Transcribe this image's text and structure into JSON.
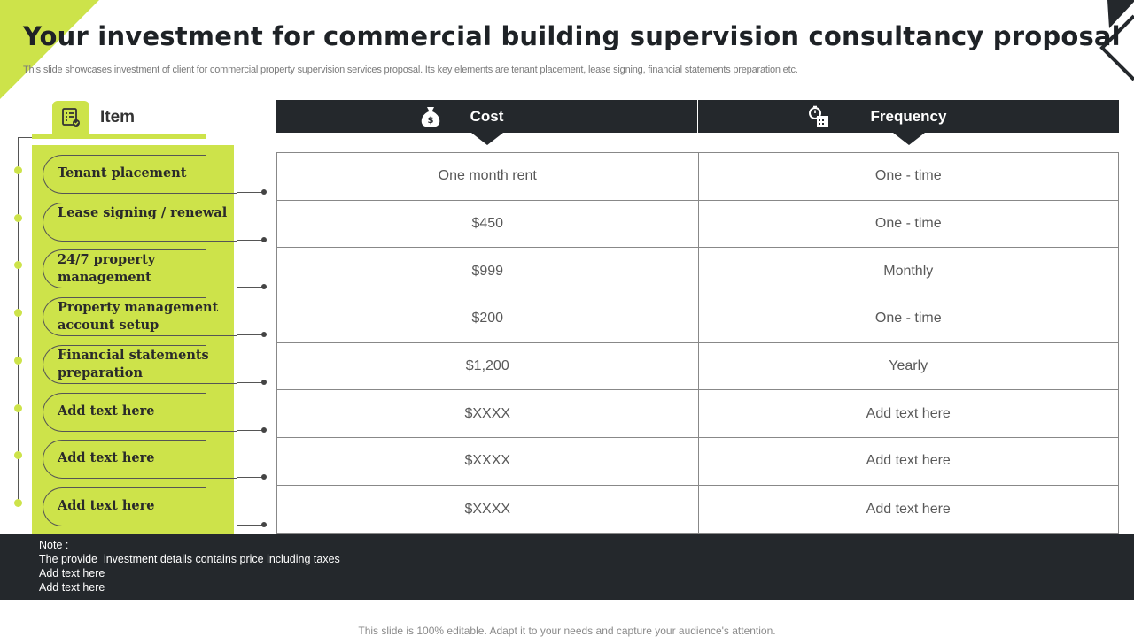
{
  "title": "Your investment for commercial building supervision consultancy proposal",
  "subtitle": "This slide showcases investment of client for commercial property supervision services proposal. Its key elements are tenant placement, lease signing, financial statements preparation etc.",
  "columns": {
    "item": "Item",
    "cost": "Cost",
    "frequency": "Frequency"
  },
  "rows": [
    {
      "item": "Tenant placement",
      "cost": "One month rent",
      "frequency": "One - time"
    },
    {
      "item": "Lease signing / renewal",
      "cost": "$450",
      "frequency": "One - time"
    },
    {
      "item": "24/7 property management",
      "cost": "$999",
      "frequency": "Monthly"
    },
    {
      "item": "Property management account setup",
      "cost": "$200",
      "frequency": "One - time"
    },
    {
      "item": "Financial statements preparation",
      "cost": "$1,200",
      "frequency": "Yearly"
    },
    {
      "item": "Add text here",
      "cost": "$XXXX",
      "frequency": "Add text here"
    },
    {
      "item": "Add text here",
      "cost": "$XXXX",
      "frequency": "Add text here"
    },
    {
      "item": "Add text here",
      "cost": "$XXXX",
      "frequency": "Add text here"
    }
  ],
  "note": {
    "heading": "Note :",
    "lines": [
      "The provide  investment details contains price including taxes",
      "Add text here",
      "Add text here"
    ]
  },
  "footer": "This slide is 100% editable. Adapt it to your needs and capture your audience's attention.",
  "icons": {
    "item": "checklist-icon",
    "cost": "money-bag-icon",
    "frequency": "stopwatch-calendar-icon"
  },
  "colors": {
    "accent": "#cde34a",
    "dark": "#24282c"
  }
}
